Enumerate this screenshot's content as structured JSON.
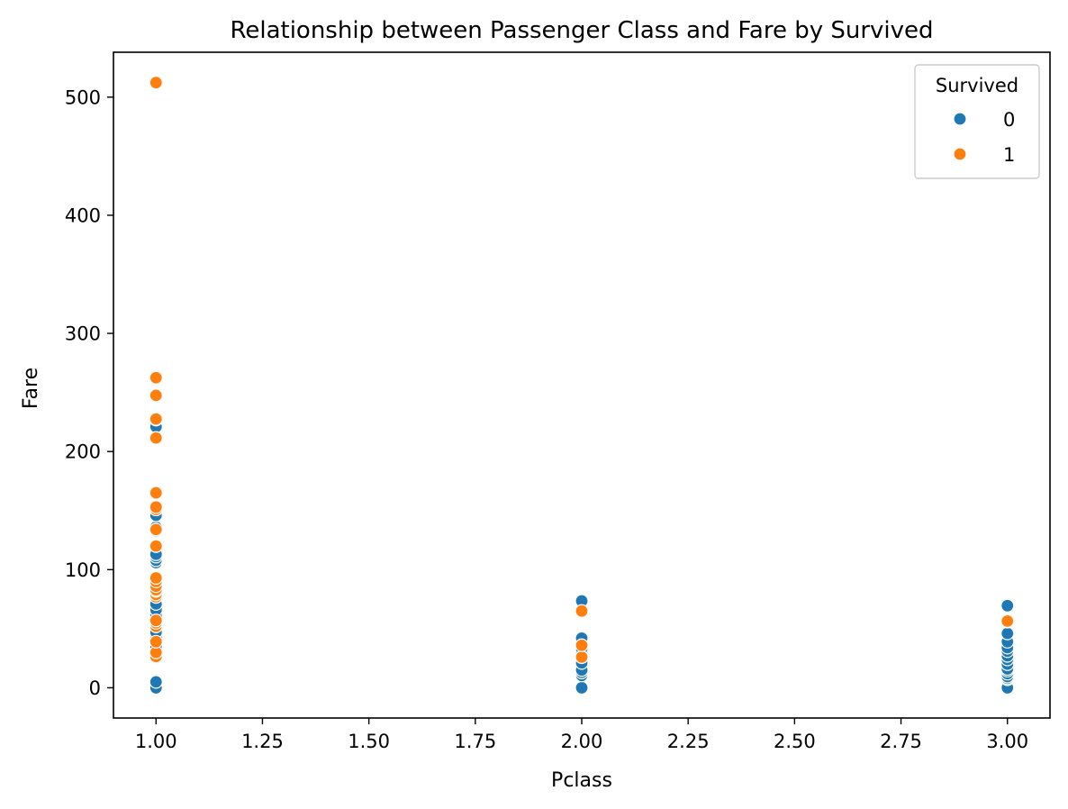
{
  "chart_data": {
    "type": "scatter",
    "title": "Relationship between Passenger Class and Fare by Survived",
    "xlabel": "Pclass",
    "ylabel": "Fare",
    "xlim": [
      0.9,
      3.1
    ],
    "ylim": [
      -25.6,
      538.0
    ],
    "x_ticks": [
      1.0,
      1.25,
      1.5,
      1.75,
      2.0,
      2.25,
      2.5,
      2.75,
      3.0
    ],
    "x_tick_labels": [
      "1.00",
      "1.25",
      "1.50",
      "1.75",
      "2.00",
      "2.25",
      "2.50",
      "2.75",
      "3.00"
    ],
    "y_ticks": [
      0,
      100,
      200,
      300,
      400,
      500
    ],
    "y_tick_labels": [
      "0",
      "100",
      "200",
      "300",
      "400",
      "500"
    ],
    "grid": false,
    "legend": {
      "title": "Survived",
      "placement": "top-right",
      "entries": [
        "0",
        "1"
      ]
    },
    "series": [
      {
        "name": "0",
        "color": "#1f77b4",
        "points": [
          [
            1,
            0
          ],
          [
            1,
            5
          ],
          [
            1,
            27
          ],
          [
            1,
            31
          ],
          [
            1,
            35
          ],
          [
            1,
            42
          ],
          [
            1,
            47
          ],
          [
            1,
            52
          ],
          [
            1,
            56
          ],
          [
            1,
            61
          ],
          [
            1,
            66
          ],
          [
            1,
            71
          ],
          [
            1,
            77
          ],
          [
            1,
            79
          ],
          [
            1,
            83
          ],
          [
            1,
            90
          ],
          [
            1,
            106
          ],
          [
            1,
            108
          ],
          [
            1,
            111
          ],
          [
            1,
            113
          ],
          [
            1,
            120
          ],
          [
            1,
            133
          ],
          [
            1,
            135
          ],
          [
            1,
            136
          ],
          [
            1,
            146
          ],
          [
            1,
            151
          ],
          [
            1,
            221
          ],
          [
            1,
            227
          ],
          [
            1,
            247
          ],
          [
            1,
            263
          ],
          [
            2,
            0
          ],
          [
            2,
            10.5
          ],
          [
            2,
            13
          ],
          [
            2,
            15
          ],
          [
            2,
            21
          ],
          [
            2,
            26
          ],
          [
            2,
            30
          ],
          [
            2,
            33
          ],
          [
            2,
            36
          ],
          [
            2,
            39
          ],
          [
            2,
            42
          ],
          [
            2,
            73.5
          ],
          [
            3,
            0
          ],
          [
            3,
            7.2
          ],
          [
            3,
            7.8
          ],
          [
            3,
            8.05
          ],
          [
            3,
            9.5
          ],
          [
            3,
            12
          ],
          [
            3,
            14.5
          ],
          [
            3,
            16
          ],
          [
            3,
            20
          ],
          [
            3,
            24
          ],
          [
            3,
            27
          ],
          [
            3,
            31
          ],
          [
            3,
            34
          ],
          [
            3,
            39
          ],
          [
            3,
            46
          ],
          [
            3,
            56
          ],
          [
            3,
            69.5
          ]
        ]
      },
      {
        "name": "1",
        "color": "#ff7f0e",
        "points": [
          [
            1,
            26.5
          ],
          [
            1,
            30
          ],
          [
            1,
            39
          ],
          [
            1,
            52
          ],
          [
            1,
            55
          ],
          [
            1,
            57
          ],
          [
            1,
            77
          ],
          [
            1,
            79
          ],
          [
            1,
            82
          ],
          [
            1,
            83
          ],
          [
            1,
            86
          ],
          [
            1,
            90
          ],
          [
            1,
            93
          ],
          [
            1,
            120
          ],
          [
            1,
            134
          ],
          [
            1,
            151
          ],
          [
            1,
            153
          ],
          [
            1,
            165
          ],
          [
            1,
            211.5
          ],
          [
            1,
            227.5
          ],
          [
            1,
            247.5
          ],
          [
            1,
            262.5
          ],
          [
            1,
            512.3
          ],
          [
            2,
            26
          ],
          [
            2,
            36
          ],
          [
            2,
            65
          ],
          [
            3,
            56.5
          ]
        ]
      }
    ]
  }
}
